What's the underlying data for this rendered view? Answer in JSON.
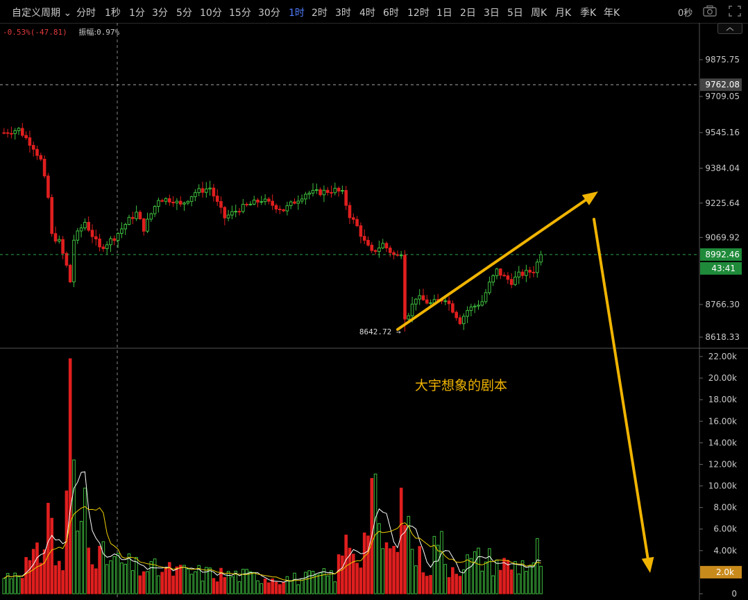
{
  "toolbar": {
    "custom_period": "自定义周期",
    "timeframes": [
      "分时",
      "1秒",
      "1分",
      "3分",
      "5分",
      "10分",
      "15分",
      "30分",
      "1时",
      "2时",
      "3时",
      "4时",
      "6时",
      "12时",
      "1日",
      "2日",
      "3日",
      "5日",
      "周K",
      "月K",
      "季K",
      "年K"
    ],
    "active_timeframe": "1时",
    "countdown": "0秒"
  },
  "info_bar": {
    "change": "-0.53%(-47.81)",
    "amplitude_label": "振幅:",
    "amplitude_value": "0.97%"
  },
  "colors": {
    "up": "#3fbf3f",
    "down": "#e01e1e",
    "accent_arrow": "#f0b400",
    "price_tag": "#444444",
    "timer_tag": "#1f8a3a",
    "volume_tag": "#c98a1c",
    "active_tab": "#4f7cff"
  },
  "chart_data": {
    "type": "candlestick",
    "price_axis": {
      "ticks": [
        "9875.75",
        "9709.05",
        "9545.16",
        "9384.04",
        "9225.64",
        "9069.92",
        "8766.30",
        "8618.33"
      ],
      "range": [
        8590,
        9940
      ]
    },
    "markers": {
      "high_line": "9762.08",
      "last_price": "8992.46",
      "countdown": "43:41",
      "low_label": "8642.72"
    },
    "volume_axis": {
      "ticks": [
        "22.00k",
        "20.00k",
        "18.00k",
        "16.00k",
        "14.00k",
        "12.00k",
        "10.00k",
        "8.00k",
        "6.00k",
        "4.00k",
        "0"
      ],
      "current": "2.0k",
      "max": 22500
    },
    "annotation": "大宇想象的剧本",
    "price_path": [
      [
        0,
        9545
      ],
      [
        4,
        9560
      ],
      [
        8,
        9480
      ],
      [
        10,
        9420
      ],
      [
        12,
        9250
      ],
      [
        13,
        9080
      ],
      [
        15,
        9050
      ],
      [
        17,
        8940
      ],
      [
        18,
        8870
      ],
      [
        19,
        9060
      ],
      [
        22,
        9140
      ],
      [
        26,
        9020
      ],
      [
        30,
        9070
      ],
      [
        34,
        9150
      ],
      [
        36,
        9180
      ],
      [
        38,
        9110
      ],
      [
        42,
        9245
      ],
      [
        46,
        9240
      ],
      [
        48,
        9215
      ],
      [
        52,
        9275
      ],
      [
        56,
        9295
      ],
      [
        58,
        9225
      ],
      [
        60,
        9160
      ],
      [
        64,
        9200
      ],
      [
        70,
        9240
      ],
      [
        76,
        9195
      ],
      [
        82,
        9270
      ],
      [
        86,
        9275
      ],
      [
        90,
        9285
      ],
      [
        92,
        9270
      ],
      [
        94,
        9170
      ],
      [
        96,
        9120
      ],
      [
        98,
        9050
      ],
      [
        100,
        9000
      ],
      [
        103,
        9040
      ],
      [
        106,
        8990
      ],
      [
        108,
        8980
      ],
      [
        109,
        8690
      ],
      [
        112,
        8800
      ],
      [
        116,
        8770
      ],
      [
        120,
        8795
      ],
      [
        124,
        8690
      ],
      [
        126,
        8740
      ],
      [
        130,
        8780
      ],
      [
        132,
        8860
      ],
      [
        134,
        8920
      ],
      [
        136,
        8890
      ],
      [
        138,
        8870
      ],
      [
        140,
        8900
      ],
      [
        144,
        8920
      ],
      [
        146,
        8992
      ]
    ],
    "volume_profile": [
      [
        0,
        1500
      ],
      [
        10,
        3500
      ],
      [
        12,
        8400
      ],
      [
        14,
        3200
      ],
      [
        16,
        2600
      ],
      [
        17,
        8000
      ],
      [
        18,
        21800
      ],
      [
        20,
        4500
      ],
      [
        22,
        9800
      ],
      [
        24,
        4600
      ],
      [
        26,
        3500
      ],
      [
        30,
        3000
      ],
      [
        36,
        2400
      ],
      [
        50,
        2000
      ],
      [
        60,
        1800
      ],
      [
        70,
        1600
      ],
      [
        80,
        1400
      ],
      [
        90,
        1800
      ],
      [
        94,
        5500
      ],
      [
        96,
        3600
      ],
      [
        98,
        5000
      ],
      [
        100,
        10700
      ],
      [
        102,
        5200
      ],
      [
        106,
        3500
      ],
      [
        108,
        9800
      ],
      [
        110,
        6300
      ],
      [
        112,
        3500
      ],
      [
        116,
        2500
      ],
      [
        118,
        6300
      ],
      [
        120,
        2500
      ],
      [
        124,
        2800
      ],
      [
        130,
        3300
      ],
      [
        138,
        2600
      ],
      [
        144,
        3000
      ],
      [
        145,
        4000
      ],
      [
        146,
        2000
      ]
    ]
  }
}
